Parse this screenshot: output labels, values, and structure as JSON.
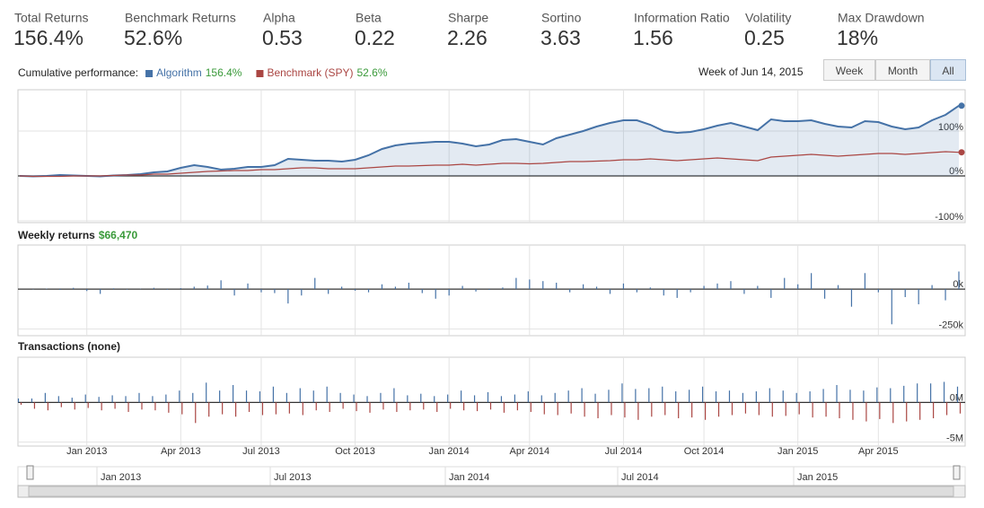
{
  "stats": [
    {
      "label": "Total Returns",
      "value": "156.4%"
    },
    {
      "label": "Benchmark Returns",
      "value": "52.6%"
    },
    {
      "label": "Alpha",
      "value": "0.53"
    },
    {
      "label": "Beta",
      "value": "0.22"
    },
    {
      "label": "Sharpe",
      "value": "2.26"
    },
    {
      "label": "Sortino",
      "value": "3.63"
    },
    {
      "label": "Information Ratio",
      "value": "1.56"
    },
    {
      "label": "Volatility",
      "value": "0.25"
    },
    {
      "label": "Max Drawdown",
      "value": "18%"
    }
  ],
  "period_label": "Week of Jun 14, 2015",
  "range_buttons": [
    "Week",
    "Month",
    "All"
  ],
  "navigator": {
    "labels": [
      "Jan 2013",
      "Jul 2013",
      "Jan 2014",
      "Jul 2014",
      "Jan 2015"
    ]
  },
  "chart_data": [
    {
      "type": "line",
      "title": "Cumulative performance:",
      "area": true,
      "series": [
        {
          "name": "Algorithm",
          "legend_value": "156.4%",
          "color": "#4572a7",
          "values": [
            0,
            -1,
            0,
            2,
            1,
            0,
            -1,
            1,
            2,
            4,
            8,
            10,
            18,
            24,
            20,
            14,
            16,
            20,
            20,
            24,
            38,
            36,
            34,
            34,
            32,
            36,
            46,
            60,
            68,
            72,
            74,
            76,
            76,
            72,
            66,
            70,
            80,
            82,
            76,
            70,
            84,
            92,
            100,
            110,
            118,
            124,
            124,
            114,
            100,
            96,
            98,
            104,
            112,
            118,
            110,
            102,
            126,
            122,
            122,
            124,
            116,
            110,
            108,
            122,
            120,
            110,
            104,
            108,
            124,
            136,
            156.4
          ]
        },
        {
          "name": "Benchmark (SPY)",
          "legend_value": "52.6%",
          "color": "#aa4643",
          "values": [
            0,
            -1,
            -1,
            -1,
            0,
            0,
            0,
            1,
            2,
            2,
            4,
            4,
            6,
            8,
            10,
            11,
            12,
            12,
            14,
            14,
            16,
            18,
            18,
            16,
            16,
            16,
            18,
            20,
            22,
            22,
            23,
            24,
            24,
            26,
            24,
            26,
            28,
            28,
            27,
            28,
            30,
            32,
            32,
            33,
            34,
            36,
            36,
            38,
            36,
            34,
            36,
            38,
            40,
            38,
            36,
            34,
            42,
            44,
            46,
            48,
            46,
            44,
            46,
            48,
            50,
            50,
            48,
            50,
            52,
            54,
            52.6
          ]
        }
      ],
      "ylim": [
        -100,
        190
      ],
      "yticks": [
        {
          "value": -100,
          "label": "-100%"
        },
        {
          "value": 0,
          "label": "0%"
        },
        {
          "value": 100,
          "label": "100%"
        }
      ],
      "grid": true
    },
    {
      "type": "bar",
      "title": "Weekly returns",
      "subtitle": "$66,470",
      "color": "#4572a7",
      "values": [
        0,
        -2000,
        3000,
        -5000,
        8000,
        -12000,
        -30000,
        5000,
        -3000,
        2000,
        8000,
        -4000,
        6000,
        15000,
        22000,
        55000,
        -40000,
        35000,
        -20000,
        -25000,
        -90000,
        -40000,
        70000,
        -30000,
        15000,
        -10000,
        -20000,
        30000,
        15000,
        40000,
        -25000,
        -60000,
        -40000,
        20000,
        -15000,
        -5000,
        10000,
        70000,
        60000,
        50000,
        40000,
        -20000,
        30000,
        15000,
        -30000,
        35000,
        -20000,
        10000,
        -40000,
        -55000,
        -20000,
        20000,
        35000,
        50000,
        -30000,
        20000,
        -55000,
        70000,
        30000,
        100000,
        -60000,
        25000,
        -110000,
        100000,
        -20000,
        -220000,
        -50000,
        -95000,
        25000,
        -70000,
        110000
      ],
      "ylim": [
        -280000,
        270000
      ],
      "yticks": [
        {
          "value": -250000,
          "label": "-250k"
        },
        {
          "value": 0,
          "label": "0k"
        }
      ],
      "grid": true
    },
    {
      "type": "bar",
      "title": "Transactions (none)",
      "categories": [
        null,
        null,
        null,
        null,
        null,
        "Jan 2013",
        null,
        null,
        null,
        null,
        null,
        null,
        "Apr 2013",
        null,
        null,
        null,
        null,
        null,
        "Jul 2013",
        null,
        null,
        null,
        null,
        null,
        null,
        "Oct 2013",
        null,
        null,
        null,
        null,
        null,
        null,
        "Jan 2014",
        null,
        null,
        null,
        null,
        null,
        "Apr 2014",
        null,
        null,
        null,
        null,
        null,
        null,
        "Jul 2014",
        null,
        null,
        null,
        null,
        null,
        "Oct 2014",
        null,
        null,
        null,
        null,
        null,
        null,
        "Jan 2015",
        null,
        null,
        null,
        null,
        null,
        "Apr 2015",
        null,
        null,
        null,
        null,
        null,
        null
      ],
      "series": [
        {
          "color": "#4572a7",
          "values": [
            0.5,
            0.5,
            1.2,
            0.8,
            0.6,
            1,
            0.7,
            0.9,
            0.8,
            1.2,
            0.8,
            1,
            1.5,
            1.2,
            2.5,
            1.5,
            2.2,
            1.5,
            1.4,
            2,
            1.2,
            1.8,
            1.5,
            2,
            1.2,
            1,
            0.8,
            1.2,
            1.8,
            0.9,
            1.1,
            0.8,
            1,
            1.5,
            0.9,
            1.3,
            0.8,
            1,
            1.4,
            0.9,
            1.2,
            1.5,
            1.8,
            1.1,
            1.6,
            2.4,
            1.7,
            1.8,
            2,
            1.4,
            1.6,
            2,
            1.4,
            1.5,
            1.2,
            1.4,
            1.8,
            1.5,
            1.2,
            1.4,
            1.7,
            2.2,
            1.6,
            1.5,
            1.9,
            1.8,
            2.1,
            2.4,
            2.4,
            2.6,
            2.0
          ]
        },
        {
          "color": "#aa4643",
          "values": [
            -0.3,
            -0.8,
            -1,
            -0.6,
            -0.9,
            -0.7,
            -1,
            -0.8,
            -1.2,
            -0.9,
            -1,
            -1.3,
            -1.5,
            -2.6,
            -1.8,
            -1.5,
            -1.8,
            -1.2,
            -1.6,
            -1.5,
            -1.4,
            -1.6,
            -1,
            -1.2,
            -0.8,
            -1.1,
            -1.3,
            -0.9,
            -1.2,
            -1,
            -0.9,
            -1.2,
            -0.8,
            -1,
            -1.1,
            -0.9,
            -1.3,
            -1,
            -1.2,
            -1.5,
            -1.6,
            -1.4,
            -1.8,
            -2,
            -1.6,
            -1.9,
            -2.2,
            -1.8,
            -1.6,
            -2,
            -1.9,
            -2.2,
            -1.8,
            -1.6,
            -1.4,
            -1.6,
            -1.8,
            -1.7,
            -1.5,
            -1.9,
            -1.8,
            -2,
            -2.2,
            -2.4,
            -2.1,
            -2.6,
            -2.4,
            -2.2,
            -2,
            -1.6,
            -1.4
          ]
        }
      ],
      "ylim": [
        -5.4,
        5.6
      ],
      "yticks": [
        {
          "value": -5,
          "label": "-5M"
        },
        {
          "value": 0,
          "label": "0M"
        }
      ],
      "grid": true
    }
  ]
}
